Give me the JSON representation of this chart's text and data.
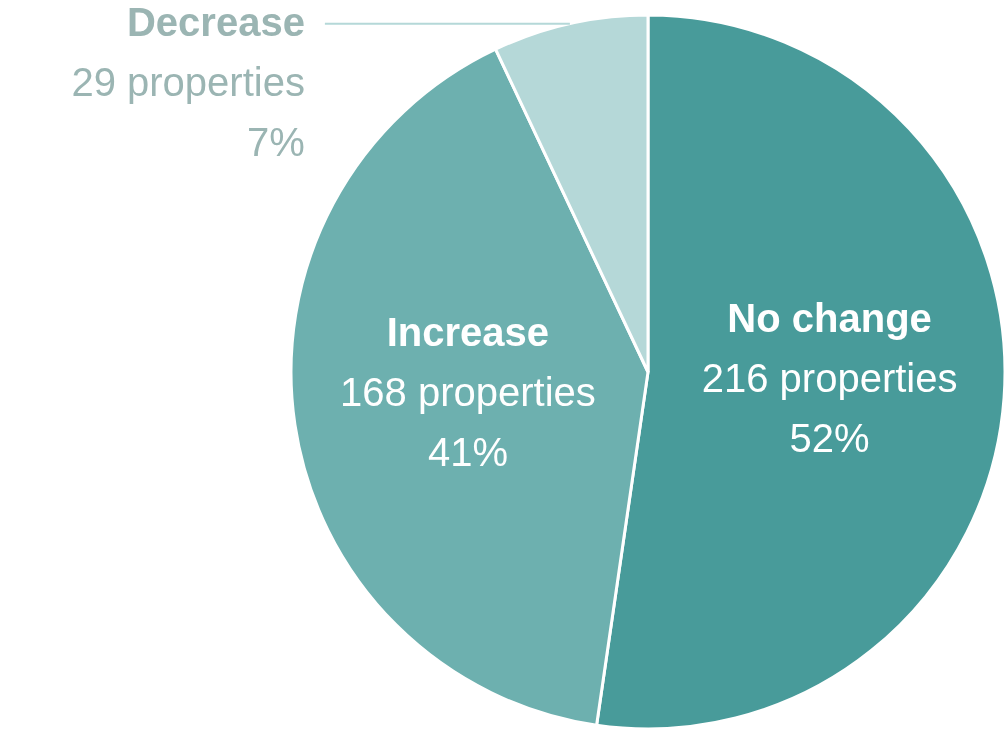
{
  "chart_data": {
    "type": "pie",
    "categories": [
      "No change",
      "Increase",
      "Decrease"
    ],
    "values": [
      216,
      168,
      29
    ],
    "colors": [
      "#489b9a",
      "#6db0af",
      "#b5d8d8"
    ],
    "value_labels": [
      "216 properties\n52%",
      "168 properties\n41%",
      "29 properties\n7%"
    ]
  }
}
